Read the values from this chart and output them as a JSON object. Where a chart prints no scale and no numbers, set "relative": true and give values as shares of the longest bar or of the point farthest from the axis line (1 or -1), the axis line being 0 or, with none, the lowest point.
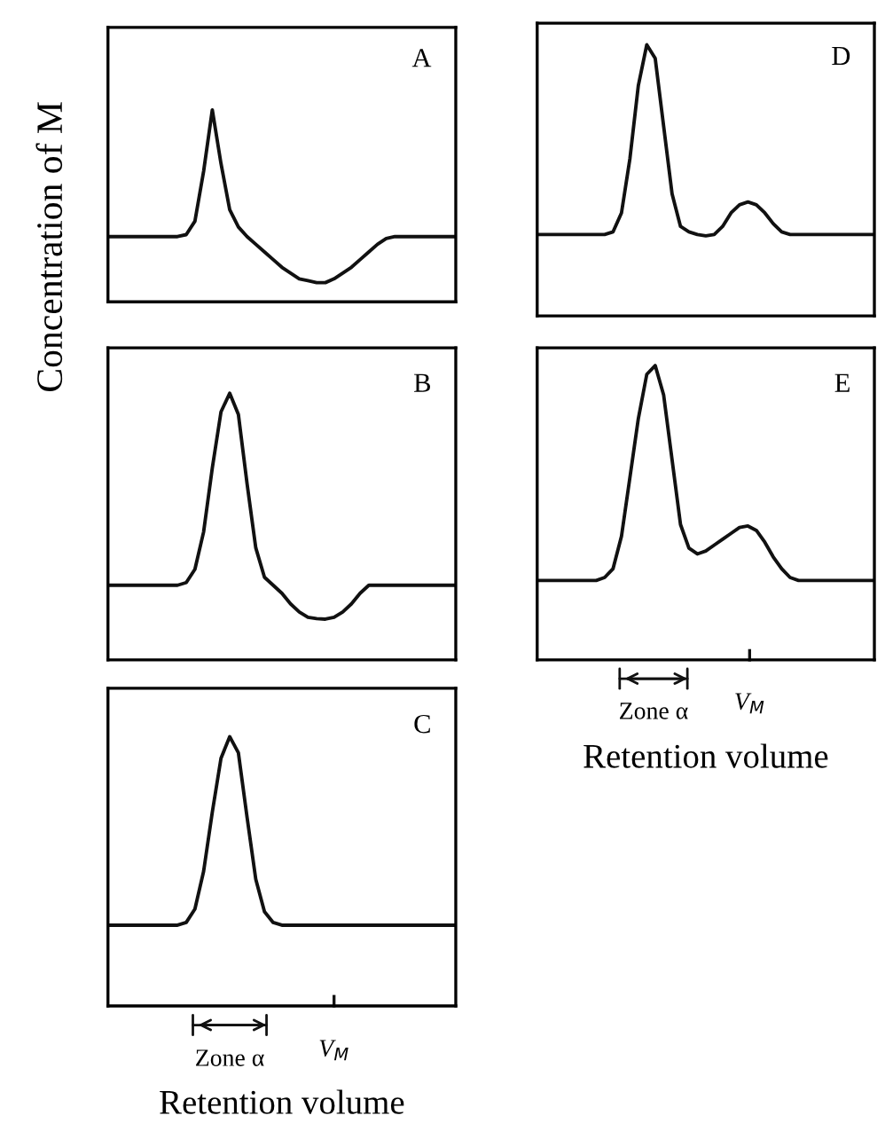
{
  "chart_data": [
    {
      "type": "line",
      "title": "A",
      "relative": true,
      "tick_labels": false,
      "color": "#111111",
      "ylabel": "Concentration of M",
      "categories": [
        null,
        null,
        null,
        null,
        null,
        null,
        null,
        null,
        null,
        null,
        null,
        null,
        null,
        null,
        null,
        null,
        null,
        null,
        null,
        null,
        null,
        null,
        null,
        null,
        null,
        null,
        null,
        null,
        null,
        null,
        null,
        null,
        null,
        null,
        null,
        null,
        null,
        null,
        null,
        null,
        null
      ],
      "values": [
        0.34,
        0.34,
        0.34,
        0.34,
        0.34,
        0.34,
        0.34,
        0.34,
        0.34,
        0.35,
        0.42,
        0.68,
        1.0,
        0.72,
        0.48,
        0.39,
        0.34,
        0.3,
        0.26,
        0.22,
        0.18,
        0.15,
        0.12,
        0.11,
        0.1,
        0.1,
        0.12,
        0.15,
        0.18,
        0.22,
        0.26,
        0.3,
        0.33,
        0.34,
        0.34,
        0.34,
        0.34,
        0.34,
        0.34,
        0.34,
        0.34
      ]
    },
    {
      "type": "line",
      "title": "B",
      "relative": true,
      "tick_labels": false,
      "color": "#111111",
      "categories": [
        null,
        null,
        null,
        null,
        null,
        null,
        null,
        null,
        null,
        null,
        null,
        null,
        null,
        null,
        null,
        null,
        null,
        null,
        null,
        null,
        null,
        null,
        null,
        null,
        null,
        null,
        null,
        null,
        null,
        null,
        null,
        null,
        null,
        null,
        null,
        null,
        null,
        null,
        null,
        null,
        null
      ],
      "values": [
        0.28,
        0.28,
        0.28,
        0.28,
        0.28,
        0.28,
        0.28,
        0.28,
        0.28,
        0.29,
        0.34,
        0.48,
        0.72,
        0.93,
        1.0,
        0.92,
        0.66,
        0.42,
        0.31,
        0.28,
        0.25,
        0.21,
        0.18,
        0.16,
        0.155,
        0.153,
        0.16,
        0.18,
        0.21,
        0.25,
        0.28,
        0.28,
        0.28,
        0.28,
        0.28,
        0.28,
        0.28,
        0.28,
        0.28,
        0.28,
        0.28
      ]
    },
    {
      "type": "line",
      "title": "C",
      "relative": true,
      "tick_labels": false,
      "color": "#111111",
      "xlabel": "Retention volume",
      "annotations": [
        "Zone α",
        "V$_{M}$"
      ],
      "categories": [
        null,
        null,
        null,
        null,
        null,
        null,
        null,
        null,
        null,
        null,
        null,
        null,
        null,
        null,
        null,
        null,
        null,
        null,
        null,
        null,
        null,
        null,
        null,
        null,
        null,
        null,
        null,
        null,
        null,
        null,
        null,
        null,
        null,
        null,
        null,
        null,
        null,
        null,
        null,
        null,
        null
      ],
      "values": [
        0.3,
        0.3,
        0.3,
        0.3,
        0.3,
        0.3,
        0.3,
        0.3,
        0.3,
        0.31,
        0.36,
        0.5,
        0.72,
        0.92,
        1.0,
        0.94,
        0.7,
        0.47,
        0.35,
        0.31,
        0.3,
        0.3,
        0.3,
        0.3,
        0.3,
        0.3,
        0.3,
        0.3,
        0.3,
        0.3,
        0.3,
        0.3,
        0.3,
        0.3,
        0.3,
        0.3,
        0.3,
        0.3,
        0.3,
        0.3,
        0.3
      ]
    },
    {
      "type": "line",
      "title": "D",
      "relative": true,
      "tick_labels": false,
      "color": "#111111",
      "categories": [
        null,
        null,
        null,
        null,
        null,
        null,
        null,
        null,
        null,
        null,
        null,
        null,
        null,
        null,
        null,
        null,
        null,
        null,
        null,
        null,
        null,
        null,
        null,
        null,
        null,
        null,
        null,
        null,
        null,
        null,
        null,
        null,
        null,
        null,
        null,
        null,
        null,
        null,
        null,
        null,
        null
      ],
      "values": [
        0.3,
        0.3,
        0.3,
        0.3,
        0.3,
        0.3,
        0.3,
        0.3,
        0.3,
        0.31,
        0.38,
        0.58,
        0.85,
        1.0,
        0.95,
        0.7,
        0.45,
        0.33,
        0.31,
        0.3,
        0.295,
        0.3,
        0.33,
        0.38,
        0.41,
        0.42,
        0.41,
        0.38,
        0.34,
        0.31,
        0.3,
        0.3,
        0.3,
        0.3,
        0.3,
        0.3,
        0.3,
        0.3,
        0.3,
        0.3,
        0.3
      ]
    },
    {
      "type": "line",
      "title": "E",
      "relative": true,
      "tick_labels": false,
      "color": "#111111",
      "xlabel": "Retention volume",
      "annotations": [
        "Zone α",
        "V$_{M}$"
      ],
      "categories": [
        null,
        null,
        null,
        null,
        null,
        null,
        null,
        null,
        null,
        null,
        null,
        null,
        null,
        null,
        null,
        null,
        null,
        null,
        null,
        null,
        null,
        null,
        null,
        null,
        null,
        null,
        null,
        null,
        null,
        null,
        null,
        null,
        null,
        null,
        null,
        null,
        null,
        null,
        null,
        null,
        null
      ],
      "values": [
        0.27,
        0.27,
        0.27,
        0.27,
        0.27,
        0.27,
        0.27,
        0.27,
        0.28,
        0.31,
        0.42,
        0.62,
        0.82,
        0.97,
        1.0,
        0.9,
        0.68,
        0.46,
        0.38,
        0.36,
        0.37,
        0.39,
        0.41,
        0.43,
        0.45,
        0.455,
        0.44,
        0.4,
        0.35,
        0.31,
        0.28,
        0.27,
        0.27,
        0.27,
        0.27,
        0.27,
        0.27,
        0.27,
        0.27,
        0.27,
        0.27
      ]
    }
  ]
}
